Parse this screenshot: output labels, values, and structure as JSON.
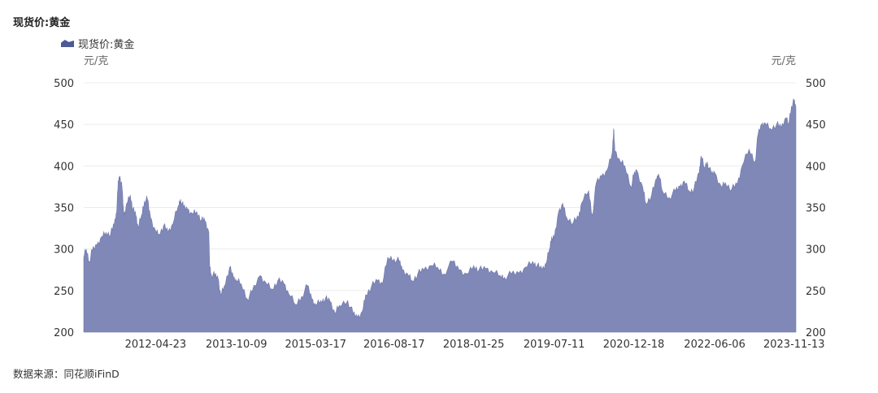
{
  "title": "现货价:黄金",
  "source": "数据来源：同花顺iFinD",
  "legend_color": "#4c5a95",
  "area_color": "#8088b7",
  "chart_data": {
    "type": "area",
    "series": [
      {
        "name": "现货价:黄金",
        "points": [
          [
            "2011-01-04",
            290
          ],
          [
            "2011-01-20",
            300
          ],
          [
            "2011-02-10",
            285
          ],
          [
            "2011-03-01",
            298
          ],
          [
            "2011-04-01",
            305
          ],
          [
            "2011-05-02",
            315
          ],
          [
            "2011-06-01",
            320
          ],
          [
            "2011-07-01",
            318
          ],
          [
            "2011-07-25",
            330
          ],
          [
            "2011-08-10",
            345
          ],
          [
            "2011-08-20",
            382
          ],
          [
            "2011-09-01",
            388
          ],
          [
            "2011-09-15",
            372
          ],
          [
            "2011-09-26",
            340
          ],
          [
            "2011-10-15",
            355
          ],
          [
            "2011-11-08",
            365
          ],
          [
            "2011-11-25",
            348
          ],
          [
            "2011-12-15",
            340
          ],
          [
            "2011-12-30",
            325
          ],
          [
            "2012-01-20",
            340
          ],
          [
            "2012-02-10",
            358
          ],
          [
            "2012-02-29",
            360
          ],
          [
            "2012-03-20",
            338
          ],
          [
            "2012-04-23",
            322
          ],
          [
            "2012-05-15",
            318
          ],
          [
            "2012-06-15",
            328
          ],
          [
            "2012-07-15",
            320
          ],
          [
            "2012-08-15",
            330
          ],
          [
            "2012-09-20",
            352
          ],
          [
            "2012-10-05",
            360
          ],
          [
            "2012-10-25",
            350
          ],
          [
            "2012-11-20",
            348
          ],
          [
            "2012-12-20",
            343
          ],
          [
            "2013-01-20",
            345
          ],
          [
            "2013-02-20",
            335
          ],
          [
            "2013-03-15",
            334
          ],
          [
            "2013-04-10",
            320
          ],
          [
            "2013-04-15",
            282
          ],
          [
            "2013-04-25",
            270
          ],
          [
            "2013-05-20",
            268
          ],
          [
            "2013-06-10",
            265
          ],
          [
            "2013-06-28",
            245
          ],
          [
            "2013-07-20",
            255
          ],
          [
            "2013-08-25",
            278
          ],
          [
            "2013-09-20",
            265
          ],
          [
            "2013-10-09",
            262
          ],
          [
            "2013-11-10",
            258
          ],
          [
            "2013-12-20",
            240
          ],
          [
            "2014-01-20",
            248
          ],
          [
            "2014-03-15",
            268
          ],
          [
            "2014-04-20",
            260
          ],
          [
            "2014-06-01",
            252
          ],
          [
            "2014-07-10",
            262
          ],
          [
            "2014-08-20",
            258
          ],
          [
            "2014-09-20",
            246
          ],
          [
            "2014-11-05",
            233
          ],
          [
            "2014-12-15",
            243
          ],
          [
            "2015-01-22",
            256
          ],
          [
            "2015-02-20",
            240
          ],
          [
            "2015-03-17",
            233
          ],
          [
            "2015-04-20",
            238
          ],
          [
            "2015-05-20",
            240
          ],
          [
            "2015-06-20",
            237
          ],
          [
            "2015-07-24",
            222
          ],
          [
            "2015-08-20",
            232
          ],
          [
            "2015-10-15",
            238
          ],
          [
            "2015-11-20",
            222
          ],
          [
            "2015-12-17",
            218
          ],
          [
            "2016-01-20",
            225
          ],
          [
            "2016-02-11",
            245
          ],
          [
            "2016-03-20",
            255
          ],
          [
            "2016-04-30",
            262
          ],
          [
            "2016-06-01",
            258
          ],
          [
            "2016-07-06",
            290
          ],
          [
            "2016-08-17",
            288
          ],
          [
            "2016-09-20",
            285
          ],
          [
            "2016-10-10",
            275
          ],
          [
            "2016-11-15",
            270
          ],
          [
            "2016-12-15",
            262
          ],
          [
            "2017-01-20",
            270
          ],
          [
            "2017-03-01",
            275
          ],
          [
            "2017-04-20",
            280
          ],
          [
            "2017-06-01",
            278
          ],
          [
            "2017-07-10",
            270
          ],
          [
            "2017-09-08",
            285
          ],
          [
            "2017-10-20",
            275
          ],
          [
            "2017-12-12",
            270
          ],
          [
            "2018-01-25",
            280
          ],
          [
            "2018-03-01",
            275
          ],
          [
            "2018-04-15",
            276
          ],
          [
            "2018-06-01",
            272
          ],
          [
            "2018-07-20",
            268
          ],
          [
            "2018-08-16",
            266
          ],
          [
            "2018-10-01",
            270
          ],
          [
            "2018-11-20",
            271
          ],
          [
            "2019-01-01",
            278
          ],
          [
            "2019-02-20",
            285
          ],
          [
            "2019-03-20",
            280
          ],
          [
            "2019-04-23",
            275
          ],
          [
            "2019-05-20",
            283
          ],
          [
            "2019-06-10",
            300
          ],
          [
            "2019-06-25",
            315
          ],
          [
            "2019-07-11",
            312
          ],
          [
            "2019-08-10",
            345
          ],
          [
            "2019-09-05",
            355
          ],
          [
            "2019-10-01",
            338
          ],
          [
            "2019-11-15",
            332
          ],
          [
            "2019-12-20",
            338
          ],
          [
            "2020-01-08",
            355
          ],
          [
            "2020-02-24",
            370
          ],
          [
            "2020-03-19",
            340
          ],
          [
            "2020-04-15",
            380
          ],
          [
            "2020-05-20",
            388
          ],
          [
            "2020-06-25",
            395
          ],
          [
            "2020-07-28",
            415
          ],
          [
            "2020-08-07",
            445
          ],
          [
            "2020-08-15",
            418
          ],
          [
            "2020-09-20",
            405
          ],
          [
            "2020-10-20",
            400
          ],
          [
            "2020-11-30",
            375
          ],
          [
            "2020-12-18",
            388
          ],
          [
            "2021-01-06",
            395
          ],
          [
            "2021-02-15",
            375
          ],
          [
            "2021-03-08",
            355
          ],
          [
            "2021-04-15",
            365
          ],
          [
            "2021-05-20",
            385
          ],
          [
            "2021-06-01",
            390
          ],
          [
            "2021-06-25",
            370
          ],
          [
            "2021-08-09",
            362
          ],
          [
            "2021-09-20",
            370
          ],
          [
            "2021-10-20",
            375
          ],
          [
            "2021-11-16",
            382
          ],
          [
            "2021-12-20",
            370
          ],
          [
            "2022-01-20",
            372
          ],
          [
            "2022-02-24",
            392
          ],
          [
            "2022-03-08",
            412
          ],
          [
            "2022-03-30",
            398
          ],
          [
            "2022-04-18",
            405
          ],
          [
            "2022-05-15",
            390
          ],
          [
            "2022-06-06",
            392
          ],
          [
            "2022-07-20",
            375
          ],
          [
            "2022-08-15",
            380
          ],
          [
            "2022-09-27",
            372
          ],
          [
            "2022-11-03",
            378
          ],
          [
            "2022-12-05",
            400
          ],
          [
            "2023-01-20",
            420
          ],
          [
            "2023-02-28",
            405
          ],
          [
            "2023-03-20",
            438
          ],
          [
            "2023-04-13",
            450
          ],
          [
            "2023-05-04",
            452
          ],
          [
            "2023-06-10",
            445
          ],
          [
            "2023-07-20",
            450
          ],
          [
            "2023-08-20",
            446
          ],
          [
            "2023-09-20",
            458
          ],
          [
            "2023-10-06",
            450
          ],
          [
            "2023-10-27",
            472
          ],
          [
            "2023-11-13",
            478
          ],
          [
            "2023-11-25",
            470
          ]
        ]
      }
    ],
    "y_unit_left": "元/克",
    "y_unit_right": "元/克",
    "ylim": [
      200,
      500
    ],
    "y_ticks": [
      "500",
      "450",
      "400",
      "350",
      "300",
      "250",
      "200"
    ],
    "x_ticks": [
      "2012-04-23",
      "2013-10-09",
      "2015-03-17",
      "2016-08-17",
      "2018-01-25",
      "2019-07-11",
      "2020-12-18",
      "2022-06-06",
      "2023-11-13"
    ],
    "x_range": [
      "2011-01-04",
      "2023-11-25"
    ],
    "grid": true,
    "legend_position": "top-left"
  }
}
